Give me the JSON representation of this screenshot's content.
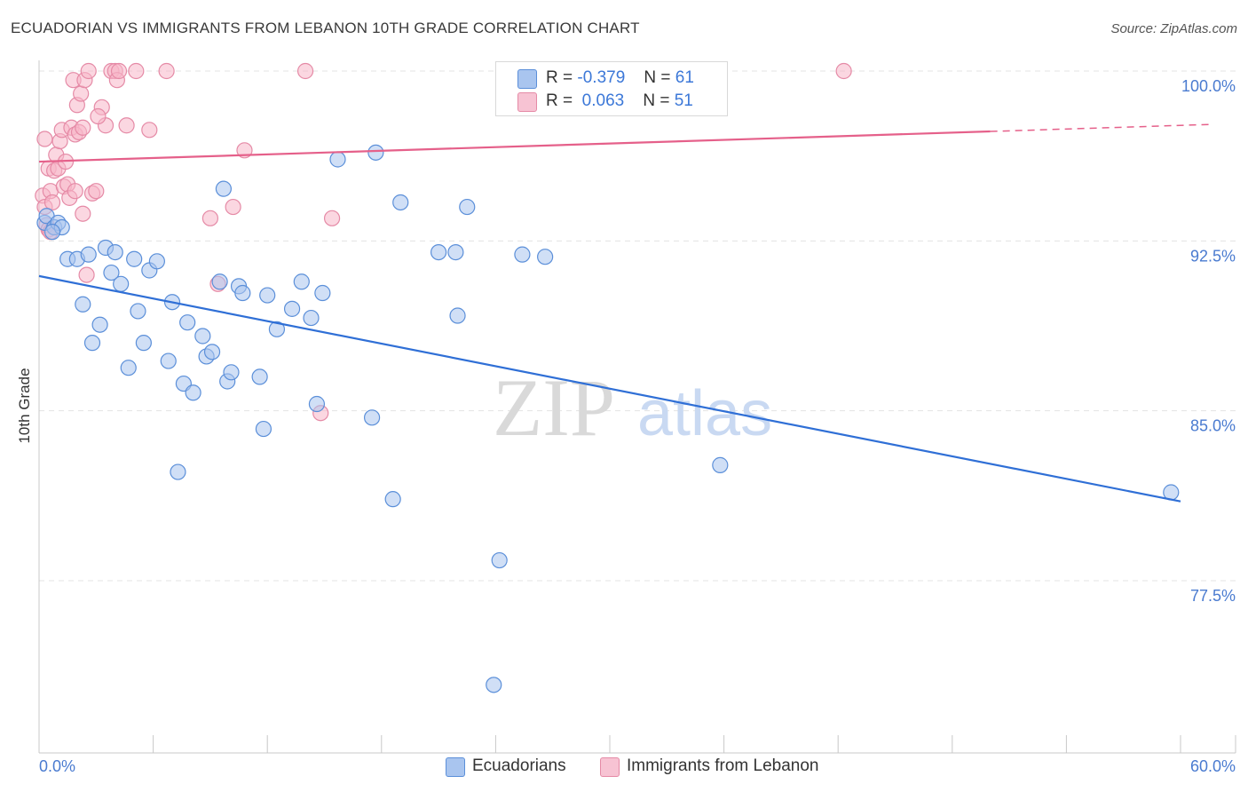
{
  "title": "ECUADORIAN VS IMMIGRANTS FROM LEBANON 10TH GRADE CORRELATION CHART",
  "source": "Source: ZipAtlas.com",
  "watermark": {
    "zip": "ZIP",
    "atlas": "atlas"
  },
  "legend_top": [
    {
      "r_label": "R =",
      "r_value": "-0.379",
      "n_label": "N =",
      "n_value": "61"
    },
    {
      "r_label": "R =",
      "r_value": "0.063",
      "n_label": "N =",
      "n_value": "51"
    }
  ],
  "legend_bottom": [
    "Ecuadorians",
    "Immigrants from Lebanon"
  ],
  "colors": {
    "blue_fill": "#a9c5ef",
    "blue_stroke": "#5b8fd9",
    "blue_line": "#2f6fd6",
    "pink_fill": "#f7b6c9",
    "pink_stroke": "#e58aa6",
    "pink_line": "#e5608a",
    "grid": "#e3e3e3",
    "axis": "#c8c8c8"
  },
  "chart_data": {
    "type": "scatter",
    "title": "ECUADORIAN VS IMMIGRANTS FROM LEBANON 10TH GRADE CORRELATION CHART",
    "xlabel": "",
    "ylabel": "10th Grade",
    "xlim": [
      0,
      60
    ],
    "ylim": [
      71,
      101
    ],
    "x_tick_labels": [
      "0.0%",
      "60.0%"
    ],
    "y_ticks": [
      100,
      92.5,
      85,
      77.5
    ],
    "y_tick_labels": [
      "100.0%",
      "92.5%",
      "85.0%",
      "77.5%"
    ],
    "grid": true,
    "legend_position": "bottom",
    "series": [
      {
        "name": "Ecuadorians",
        "r": -0.379,
        "n": 61,
        "trend": {
          "x": [
            0,
            60
          ],
          "y": [
            90.95,
            81.0
          ],
          "dashed_from": null
        },
        "points": [
          [
            0.3,
            93.3
          ],
          [
            0.4,
            93.6
          ],
          [
            0.8,
            93.1
          ],
          [
            1.0,
            93.3
          ],
          [
            1.2,
            93.1
          ],
          [
            1.5,
            91.7
          ],
          [
            2.0,
            91.7
          ],
          [
            2.3,
            89.7
          ],
          [
            2.6,
            91.9
          ],
          [
            2.8,
            88.0
          ],
          [
            3.2,
            88.8
          ],
          [
            3.5,
            92.2
          ],
          [
            3.8,
            91.1
          ],
          [
            4.0,
            92.0
          ],
          [
            4.3,
            90.6
          ],
          [
            4.7,
            86.9
          ],
          [
            5.0,
            91.7
          ],
          [
            5.2,
            89.4
          ],
          [
            5.5,
            88.0
          ],
          [
            5.8,
            91.2
          ],
          [
            6.2,
            91.6
          ],
          [
            6.8,
            87.2
          ],
          [
            7.0,
            89.8
          ],
          [
            7.3,
            82.3
          ],
          [
            7.6,
            86.2
          ],
          [
            7.8,
            88.9
          ],
          [
            8.1,
            85.8
          ],
          [
            8.6,
            88.3
          ],
          [
            8.8,
            87.4
          ],
          [
            9.1,
            87.6
          ],
          [
            9.5,
            90.7
          ],
          [
            9.7,
            94.8
          ],
          [
            9.9,
            86.3
          ],
          [
            10.1,
            86.7
          ],
          [
            10.5,
            90.5
          ],
          [
            10.7,
            90.2
          ],
          [
            11.6,
            86.5
          ],
          [
            11.8,
            84.2
          ],
          [
            12.0,
            90.1
          ],
          [
            12.5,
            88.6
          ],
          [
            13.3,
            89.5
          ],
          [
            13.8,
            90.7
          ],
          [
            14.3,
            89.1
          ],
          [
            14.6,
            85.3
          ],
          [
            14.9,
            90.2
          ],
          [
            15.7,
            96.1
          ],
          [
            17.5,
            84.7
          ],
          [
            17.7,
            96.4
          ],
          [
            18.6,
            81.1
          ],
          [
            19.0,
            94.2
          ],
          [
            21.0,
            92.0
          ],
          [
            21.9,
            92.0
          ],
          [
            22.0,
            89.2
          ],
          [
            22.5,
            94.0
          ],
          [
            23.9,
            72.9
          ],
          [
            24.2,
            78.4
          ],
          [
            25.4,
            91.9
          ],
          [
            26.6,
            91.8
          ],
          [
            35.8,
            82.6
          ],
          [
            59.5,
            81.4
          ],
          [
            0.7,
            92.9
          ]
        ]
      },
      {
        "name": "Immigrants from Lebanon",
        "r": 0.063,
        "n": 51,
        "trend": {
          "x": [
            0,
            60
          ],
          "y": [
            96.0,
            97.6
          ],
          "dashed_from": 50
        },
        "points": [
          [
            0.2,
            94.5
          ],
          [
            0.3,
            94.0
          ],
          [
            0.4,
            93.2
          ],
          [
            0.5,
            95.7
          ],
          [
            0.6,
            94.7
          ],
          [
            0.7,
            94.2
          ],
          [
            0.8,
            95.6
          ],
          [
            0.9,
            96.3
          ],
          [
            1.0,
            95.7
          ],
          [
            1.1,
            96.9
          ],
          [
            1.2,
            97.4
          ],
          [
            1.3,
            94.9
          ],
          [
            1.5,
            95.0
          ],
          [
            1.6,
            94.4
          ],
          [
            1.7,
            97.5
          ],
          [
            1.8,
            99.6
          ],
          [
            1.9,
            97.2
          ],
          [
            2.0,
            98.5
          ],
          [
            2.1,
            97.3
          ],
          [
            2.2,
            99.0
          ],
          [
            2.3,
            97.5
          ],
          [
            2.4,
            99.6
          ],
          [
            2.5,
            91.0
          ],
          [
            2.6,
            100.0
          ],
          [
            2.8,
            94.6
          ],
          [
            3.0,
            94.7
          ],
          [
            3.3,
            98.4
          ],
          [
            3.5,
            97.6
          ],
          [
            3.8,
            100.0
          ],
          [
            4.0,
            100.0
          ],
          [
            4.1,
            99.6
          ],
          [
            4.6,
            97.6
          ],
          [
            5.1,
            100.0
          ],
          [
            5.8,
            97.4
          ],
          [
            6.7,
            100.0
          ],
          [
            9.0,
            93.5
          ],
          [
            9.4,
            90.6
          ],
          [
            10.2,
            94.0
          ],
          [
            10.8,
            96.5
          ],
          [
            14.0,
            100.0
          ],
          [
            14.8,
            84.9
          ],
          [
            15.4,
            93.5
          ],
          [
            42.3,
            100.0
          ],
          [
            0.5,
            93.0
          ],
          [
            1.9,
            94.7
          ],
          [
            0.3,
            97.0
          ],
          [
            2.3,
            93.7
          ],
          [
            3.1,
            98.0
          ],
          [
            4.2,
            100.0
          ],
          [
            1.4,
            96.0
          ],
          [
            0.6,
            92.9
          ]
        ]
      }
    ]
  }
}
